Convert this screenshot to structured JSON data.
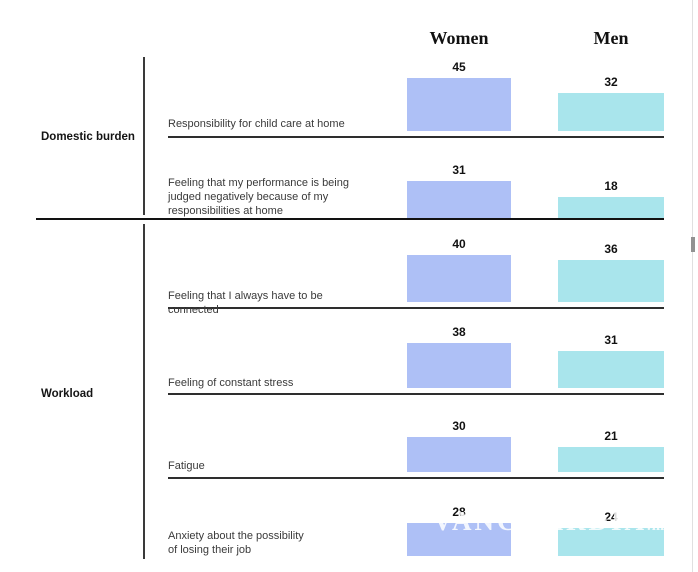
{
  "chart_data": {
    "type": "bar",
    "title": "",
    "orientation": "vertical",
    "value_labels": true,
    "grid": false,
    "legend_position": "column headers on top",
    "ylim": [
      0,
      45
    ],
    "categories": [
      "Responsibility for child care at home",
      "Feeling that my performance is being\njudged negatively because of my\nresponsibilities at home",
      "Feeling that I always have to be connected",
      "Feeling of constant stress",
      "Fatigue",
      "Anxiety about the possibility\nof losing their job"
    ],
    "series": [
      {
        "name": "Women",
        "color": "#aec0f6",
        "values": [
          45,
          31,
          40,
          38,
          30,
          28
        ]
      },
      {
        "name": "Men",
        "color": "#a9e5ec",
        "values": [
          32,
          18,
          36,
          31,
          21,
          24
        ]
      }
    ],
    "groups": [
      {
        "label": "Domestic burden",
        "category_indexes": [
          0,
          1
        ]
      },
      {
        "label": "Workload",
        "category_indexes": [
          2,
          3,
          4,
          5
        ]
      }
    ]
  },
  "watermark": {
    "text": "VANGUARDIA",
    "suffix": ".mx"
  },
  "colors": {
    "women_bar": "#aec0f6",
    "men_bar": "#a9e5ec",
    "row_line": "#2e2e2e",
    "group_separator": "#121212",
    "scrollbar_thumb": "#929292"
  }
}
